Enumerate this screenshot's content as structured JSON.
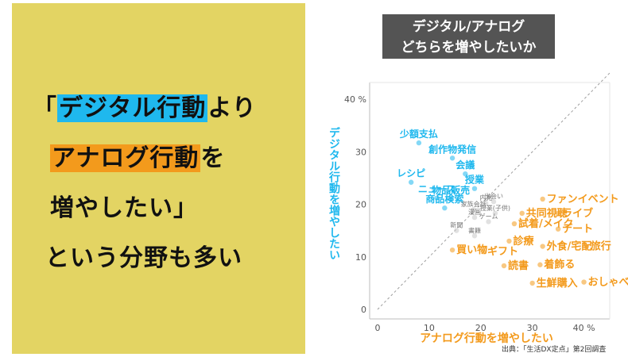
{
  "headline": {
    "line1_open": "「",
    "line1_highlight": "デジタル行動",
    "line1_rest": "より",
    "line2_highlight": "アナログ行動",
    "line2_rest": "を",
    "line3": "増やしたい」",
    "line4": "という分野も多い",
    "colors": {
      "panel": "#e3d463",
      "digital": "#1fb8ee",
      "analog": "#f39a1c"
    }
  },
  "chart_title": {
    "line1": "デジタル/アナログ",
    "line2": "どちらを増やしたいか"
  },
  "source": "出典：「生活DX定点」第2回調査",
  "chart_data": {
    "type": "scatter",
    "xlabel": "アナログ行動を増やしたい",
    "ylabel": "デジタル行動を増やしたい",
    "xlim": [
      0,
      45
    ],
    "ylim": [
      0,
      45
    ],
    "xticks": [
      "0",
      "10",
      "20",
      "30",
      "40 %"
    ],
    "yticks": [
      "0",
      "10",
      "20",
      "30",
      "40 %"
    ],
    "diagonal": true,
    "digital_color": "#1fb8ee",
    "analog_color": "#f39a1c",
    "neutral_color": "#c8c8c8",
    "points": [
      {
        "label": "少額支払",
        "x": 8,
        "y": 31.7,
        "group": "digital"
      },
      {
        "label": "創作物発信",
        "x": 14.5,
        "y": 28.8,
        "group": "digital"
      },
      {
        "label": "会議",
        "x": 17,
        "y": 25.8,
        "group": "digital"
      },
      {
        "label": "授業",
        "x": 18.8,
        "y": 23,
        "group": "digital"
      },
      {
        "label": "レシピ",
        "x": 6.5,
        "y": 24.2,
        "group": "digital"
      },
      {
        "label": "ニュース",
        "x": 11.5,
        "y": 21.2,
        "group": "digital"
      },
      {
        "label": "物品販売",
        "x": 14.2,
        "y": 21,
        "group": "digital"
      },
      {
        "label": "商品検索",
        "x": 13,
        "y": 19.3,
        "group": "digital"
      },
      {
        "label": "家族会話",
        "x": 18.6,
        "y": 19,
        "group": "neutral"
      },
      {
        "label": "内見",
        "x": 21,
        "y": 20.2,
        "group": "neutral"
      },
      {
        "label": "出会い",
        "x": 22.5,
        "y": 20.5,
        "group": "neutral"
      },
      {
        "label": "漫画",
        "x": 18.8,
        "y": 17.5,
        "group": "neutral"
      },
      {
        "label": "ゲーム",
        "x": 21.5,
        "y": 16.7,
        "group": "neutral"
      },
      {
        "label": "授業(子供)",
        "x": 22.8,
        "y": 18.3,
        "group": "neutral"
      },
      {
        "label": "新聞",
        "x": 15.3,
        "y": 15,
        "group": "neutral"
      },
      {
        "label": "書籍",
        "x": 18.8,
        "y": 14,
        "group": "neutral"
      },
      {
        "label": "買い物",
        "x": 14.5,
        "y": 11.3,
        "group": "analog"
      },
      {
        "label": "ギフト",
        "x": 20.5,
        "y": 11,
        "group": "analog"
      },
      {
        "label": "ファンイベント",
        "x": 32,
        "y": 21,
        "group": "analog"
      },
      {
        "label": "共同視聴",
        "x": 28,
        "y": 18.3,
        "group": "analog"
      },
      {
        "label": "ライブ",
        "x": 35,
        "y": 18.3,
        "group": "analog"
      },
      {
        "label": "試着/メイク",
        "x": 26.5,
        "y": 16.3,
        "group": "analog"
      },
      {
        "label": "デート",
        "x": 35,
        "y": 15.3,
        "group": "analog"
      },
      {
        "label": "診療",
        "x": 25.5,
        "y": 13,
        "group": "analog"
      },
      {
        "label": "外食/宅配",
        "x": 32,
        "y": 12,
        "group": "analog"
      },
      {
        "label": "旅行",
        "x": 40.5,
        "y": 12,
        "group": "analog"
      },
      {
        "label": "着飾る",
        "x": 31.5,
        "y": 8.5,
        "group": "analog"
      },
      {
        "label": "読書",
        "x": 24.5,
        "y": 8.3,
        "group": "analog"
      },
      {
        "label": "生鮮購入",
        "x": 30,
        "y": 5,
        "group": "analog"
      },
      {
        "label": "おしゃべり",
        "x": 40,
        "y": 5.2,
        "group": "analog"
      }
    ]
  }
}
